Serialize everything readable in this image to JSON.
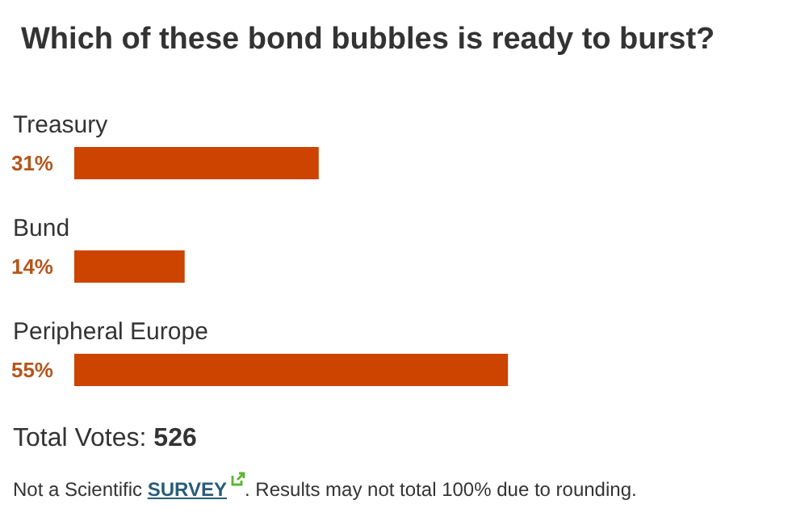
{
  "chart_data": {
    "type": "bar",
    "orientation": "horizontal",
    "title": "Which of these bond bubbles is ready to burst?",
    "categories": [
      "Treasury",
      "Bund",
      "Peripheral Europe"
    ],
    "values": [
      31,
      14,
      55
    ],
    "value_labels": [
      "31%",
      "14%",
      "55%"
    ],
    "color": "#cc4400",
    "grid": false,
    "annotations": [
      "Total Votes: 526",
      "Not a Scientific SURVEY",
      ". Results may not total 100% due to rounding."
    ]
  }
}
